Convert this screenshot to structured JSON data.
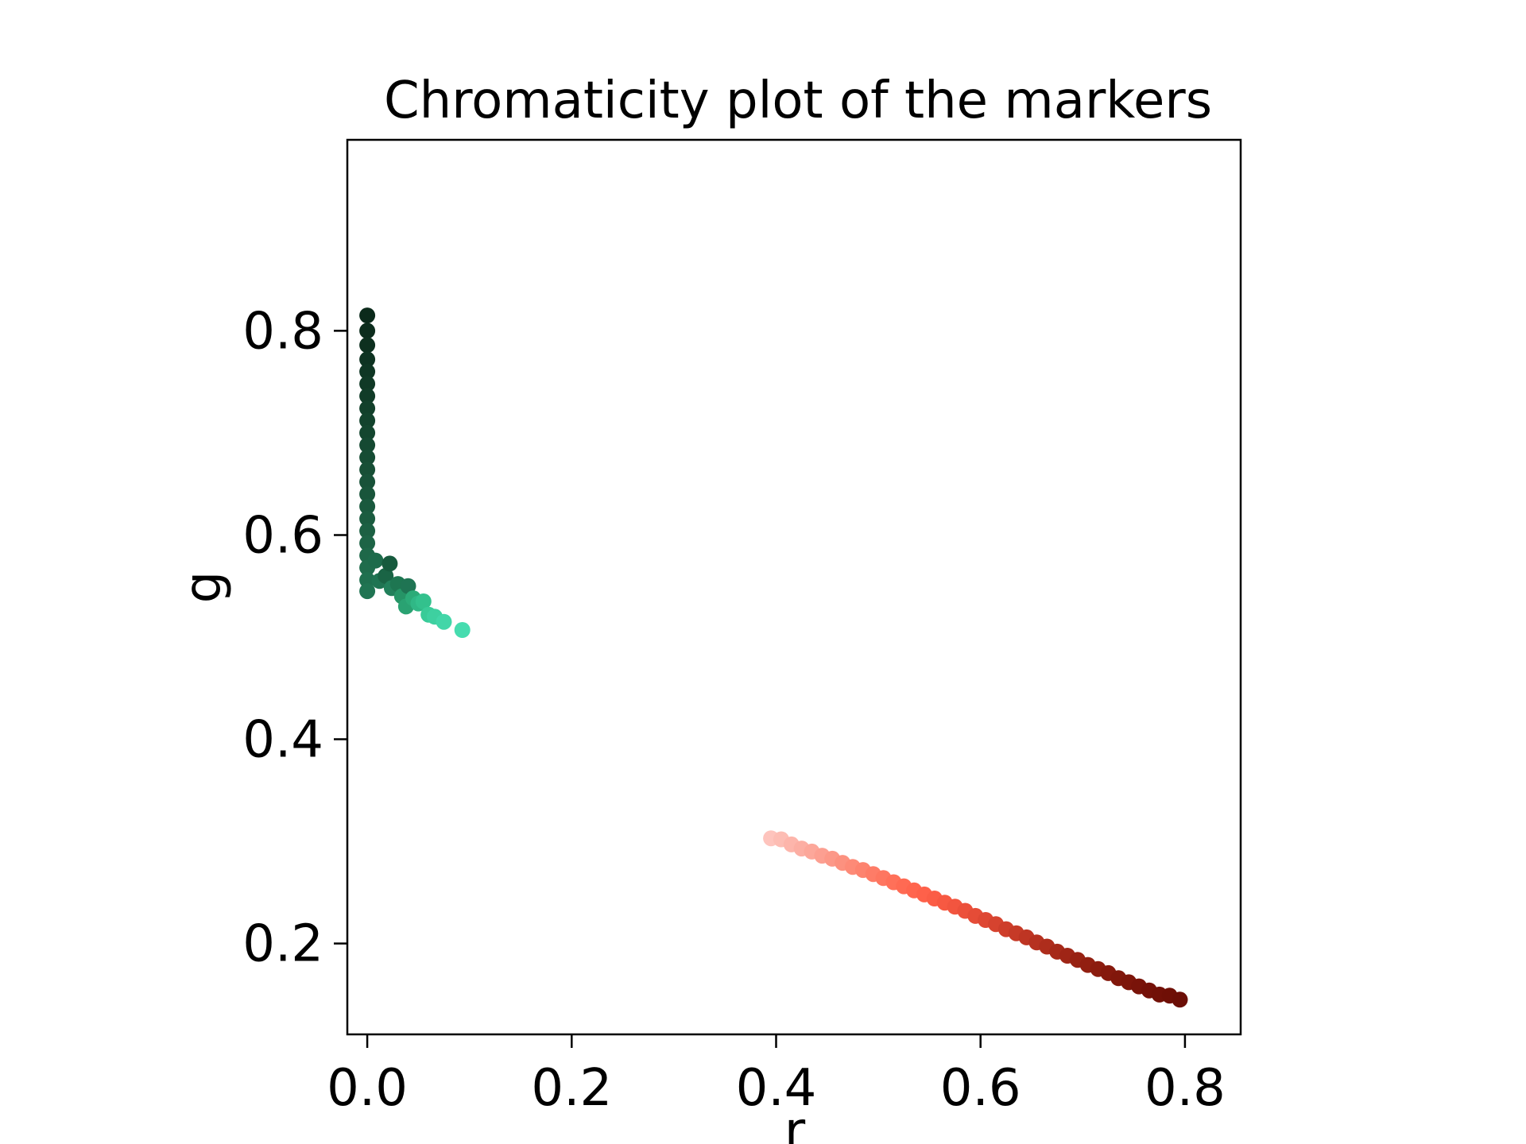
{
  "chart_data": {
    "type": "scatter",
    "title": "Chromaticity plot of the markers",
    "xlabel": "r",
    "ylabel": "g",
    "xlim": [
      -0.0195,
      0.8545
    ],
    "ylim": [
      0.111,
      0.987
    ],
    "xticks": [
      0.0,
      0.2,
      0.4,
      0.6,
      0.8
    ],
    "xtick_labels": [
      "0.0",
      "0.2",
      "0.4",
      "0.6",
      "0.8"
    ],
    "yticks": [
      0.2,
      0.4,
      0.6,
      0.8
    ],
    "ytick_labels": [
      "0.2",
      "0.4",
      "0.6",
      "0.8"
    ],
    "grid": false,
    "legend": false,
    "series": [
      {
        "points": [
          {
            "x": 0.0,
            "y": 0.815,
            "color": "#0b2a1b"
          },
          {
            "x": 0.0,
            "y": 0.8,
            "color": "#0c2d1d"
          },
          {
            "x": 0.0,
            "y": 0.786,
            "color": "#0d301f"
          },
          {
            "x": 0.0,
            "y": 0.772,
            "color": "#0e3322"
          },
          {
            "x": 0.0,
            "y": 0.76,
            "color": "#0f3624"
          },
          {
            "x": 0.0,
            "y": 0.748,
            "color": "#103926"
          },
          {
            "x": 0.0,
            "y": 0.736,
            "color": "#113c28"
          },
          {
            "x": 0.0,
            "y": 0.724,
            "color": "#12402b"
          },
          {
            "x": 0.0,
            "y": 0.712,
            "color": "#13432d"
          },
          {
            "x": 0.0,
            "y": 0.7,
            "color": "#14462f"
          },
          {
            "x": 0.0,
            "y": 0.688,
            "color": "#154932"
          },
          {
            "x": 0.0,
            "y": 0.676,
            "color": "#164c34"
          },
          {
            "x": 0.0,
            "y": 0.664,
            "color": "#174f36"
          },
          {
            "x": 0.0,
            "y": 0.652,
            "color": "#185239"
          },
          {
            "x": 0.0,
            "y": 0.64,
            "color": "#19553b"
          },
          {
            "x": 0.0,
            "y": 0.628,
            "color": "#1a593e"
          },
          {
            "x": 0.0,
            "y": 0.616,
            "color": "#1b5c40"
          },
          {
            "x": 0.0,
            "y": 0.604,
            "color": "#1c6043"
          },
          {
            "x": 0.0,
            "y": 0.592,
            "color": "#1d6446"
          },
          {
            "x": 0.0,
            "y": 0.58,
            "color": "#1e6849"
          },
          {
            "x": 0.0,
            "y": 0.568,
            "color": "#1f6c4c"
          },
          {
            "x": 0.0,
            "y": 0.556,
            "color": "#1f704f"
          },
          {
            "x": 0.0,
            "y": 0.545,
            "color": "#207452"
          },
          {
            "x": 0.008,
            "y": 0.575,
            "color": "#1d6b4b"
          },
          {
            "x": 0.012,
            "y": 0.555,
            "color": "#1f7452"
          },
          {
            "x": 0.018,
            "y": 0.56,
            "color": "#1a6445"
          },
          {
            "x": 0.022,
            "y": 0.572,
            "color": "#165a3d"
          },
          {
            "x": 0.024,
            "y": 0.548,
            "color": "#22805b"
          },
          {
            "x": 0.03,
            "y": 0.552,
            "color": "#1e7651"
          },
          {
            "x": 0.034,
            "y": 0.54,
            "color": "#269466"
          },
          {
            "x": 0.038,
            "y": 0.53,
            "color": "#2aa272"
          },
          {
            "x": 0.04,
            "y": 0.55,
            "color": "#1f7453"
          },
          {
            "x": 0.045,
            "y": 0.538,
            "color": "#2cab78"
          },
          {
            "x": 0.05,
            "y": 0.533,
            "color": "#30b886"
          },
          {
            "x": 0.055,
            "y": 0.535,
            "color": "#33c18d"
          },
          {
            "x": 0.06,
            "y": 0.522,
            "color": "#39cb98"
          },
          {
            "x": 0.066,
            "y": 0.52,
            "color": "#3ed0a0"
          },
          {
            "x": 0.075,
            "y": 0.515,
            "color": "#42d6a8"
          },
          {
            "x": 0.093,
            "y": 0.507,
            "color": "#46dcaf"
          },
          {
            "x": 0.395,
            "y": 0.303,
            "color": "#fec4bd"
          },
          {
            "x": 0.405,
            "y": 0.302,
            "color": "#fdbdb4"
          },
          {
            "x": 0.415,
            "y": 0.297,
            "color": "#fdb5ab"
          },
          {
            "x": 0.425,
            "y": 0.293,
            "color": "#fcaea3"
          },
          {
            "x": 0.435,
            "y": 0.29,
            "color": "#fca79a"
          },
          {
            "x": 0.445,
            "y": 0.286,
            "color": "#fc9f91"
          },
          {
            "x": 0.455,
            "y": 0.283,
            "color": "#fc9888"
          },
          {
            "x": 0.465,
            "y": 0.279,
            "color": "#fc917f"
          },
          {
            "x": 0.475,
            "y": 0.275,
            "color": "#fd8a77"
          },
          {
            "x": 0.485,
            "y": 0.272,
            "color": "#fd836f"
          },
          {
            "x": 0.495,
            "y": 0.268,
            "color": "#fe7c67"
          },
          {
            "x": 0.505,
            "y": 0.264,
            "color": "#fe7660"
          },
          {
            "x": 0.515,
            "y": 0.26,
            "color": "#ff7059"
          },
          {
            "x": 0.525,
            "y": 0.256,
            "color": "#ff6a53"
          },
          {
            "x": 0.535,
            "y": 0.252,
            "color": "#ff654e"
          },
          {
            "x": 0.545,
            "y": 0.248,
            "color": "#fe614a"
          },
          {
            "x": 0.555,
            "y": 0.244,
            "color": "#fb5d46"
          },
          {
            "x": 0.565,
            "y": 0.24,
            "color": "#f75942"
          },
          {
            "x": 0.575,
            "y": 0.236,
            "color": "#f2553f"
          },
          {
            "x": 0.585,
            "y": 0.232,
            "color": "#ec503b"
          },
          {
            "x": 0.595,
            "y": 0.227,
            "color": "#e54c37"
          },
          {
            "x": 0.605,
            "y": 0.223,
            "color": "#de4733"
          },
          {
            "x": 0.615,
            "y": 0.219,
            "color": "#d6432f"
          },
          {
            "x": 0.625,
            "y": 0.214,
            "color": "#ce3e2b"
          },
          {
            "x": 0.635,
            "y": 0.21,
            "color": "#c63a27"
          },
          {
            "x": 0.645,
            "y": 0.206,
            "color": "#be3523"
          },
          {
            "x": 0.655,
            "y": 0.201,
            "color": "#b63120"
          },
          {
            "x": 0.665,
            "y": 0.197,
            "color": "#ae2d1c"
          },
          {
            "x": 0.675,
            "y": 0.192,
            "color": "#a62919"
          },
          {
            "x": 0.685,
            "y": 0.188,
            "color": "#9f2516"
          },
          {
            "x": 0.695,
            "y": 0.184,
            "color": "#982213"
          },
          {
            "x": 0.705,
            "y": 0.179,
            "color": "#921f11"
          },
          {
            "x": 0.715,
            "y": 0.175,
            "color": "#8c1c0f"
          },
          {
            "x": 0.725,
            "y": 0.171,
            "color": "#86190d"
          },
          {
            "x": 0.735,
            "y": 0.166,
            "color": "#81170b"
          },
          {
            "x": 0.745,
            "y": 0.162,
            "color": "#7d150a"
          },
          {
            "x": 0.755,
            "y": 0.158,
            "color": "#791309"
          },
          {
            "x": 0.765,
            "y": 0.154,
            "color": "#751108"
          },
          {
            "x": 0.775,
            "y": 0.15,
            "color": "#721007"
          },
          {
            "x": 0.785,
            "y": 0.149,
            "color": "#6f0f06"
          },
          {
            "x": 0.795,
            "y": 0.145,
            "color": "#6c0e06"
          }
        ]
      }
    ]
  }
}
